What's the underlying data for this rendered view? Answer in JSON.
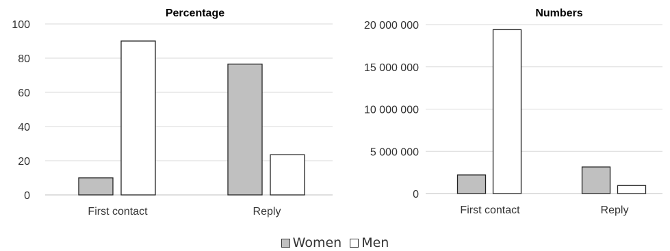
{
  "chart_data": [
    {
      "type": "bar",
      "title": "Percentage",
      "categories": [
        "First contact",
        "Reply"
      ],
      "series": [
        {
          "name": "Women",
          "values": [
            10,
            76.5
          ]
        },
        {
          "name": "Men",
          "values": [
            90,
            23.5
          ]
        }
      ],
      "ylim": [
        0,
        100
      ],
      "yticks": [
        "0",
        "20",
        "40",
        "60",
        "80",
        "100"
      ],
      "grid": true
    },
    {
      "type": "bar",
      "title": "Numbers",
      "categories": [
        "First contact",
        "Reply"
      ],
      "series": [
        {
          "name": "Women",
          "values": [
            2200000,
            3150000
          ]
        },
        {
          "name": "Men",
          "values": [
            19400000,
            950000
          ]
        }
      ],
      "ylim": [
        0,
        20000000
      ],
      "yticks": [
        "0",
        "5 000 000",
        "10 000 000",
        "15 000 000",
        "20 000 000"
      ],
      "grid": true
    }
  ],
  "legend": {
    "position": "bottom",
    "items": [
      {
        "label": "Women",
        "color": "#c0c0c0"
      },
      {
        "label": "Men",
        "color": "#ffffff"
      }
    ]
  },
  "colors": {
    "women": "#c0c0c0",
    "men": "#ffffff",
    "bar_border": "#222222",
    "grid": "#d9d9d9",
    "axis": "#bfbfbf"
  }
}
